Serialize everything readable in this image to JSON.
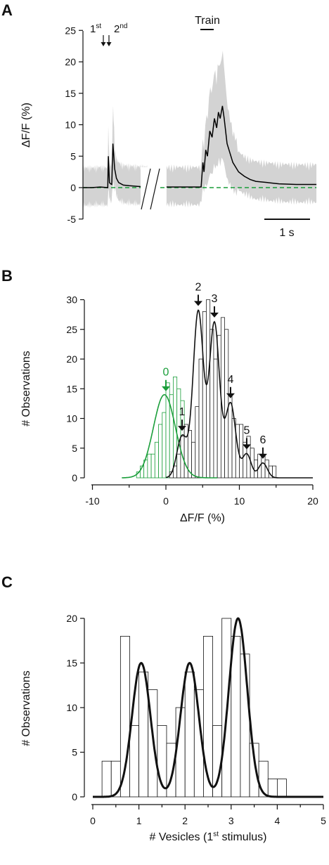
{
  "chart_data": [
    {
      "panel": "A",
      "type": "line",
      "ylabel": "ΔF/F (%)",
      "ylim": [
        -5,
        25
      ],
      "yticks": [
        -5,
        0,
        5,
        10,
        15,
        20,
        25
      ],
      "annotations": {
        "first": {
          "base": "1",
          "sup": "st"
        },
        "second": {
          "base": "2",
          "sup": "nd"
        },
        "train": "Train",
        "scalebar": "1 s"
      },
      "series": [
        {
          "role": "raw traces",
          "color": "#d3d3d3"
        },
        {
          "role": "average trace",
          "color": "#000000",
          "points_left": [
            [
              0,
              0
            ],
            [
              0.15,
              0
            ],
            [
              0.3,
              0.1
            ],
            [
              0.43,
              0
            ],
            [
              0.44,
              5
            ],
            [
              0.46,
              0.8
            ],
            [
              0.48,
              0.6
            ],
            [
              0.5,
              0.5
            ],
            [
              0.52,
              7
            ],
            [
              0.55,
              3
            ],
            [
              0.58,
              1.5
            ],
            [
              0.62,
              0.8
            ],
            [
              0.7,
              0.4
            ],
            [
              0.8,
              0.3
            ],
            [
              0.95,
              0.2
            ],
            [
              1.12,
              0.1
            ]
          ],
          "points_right": [
            [
              1.45,
              0.1
            ],
            [
              1.7,
              0.1
            ],
            [
              2.05,
              0.1
            ],
            [
              2.08,
              4
            ],
            [
              2.1,
              2.5
            ],
            [
              2.13,
              6
            ],
            [
              2.16,
              5
            ],
            [
              2.2,
              9
            ],
            [
              2.24,
              8
            ],
            [
              2.28,
              11
            ],
            [
              2.32,
              9.5
            ],
            [
              2.35,
              12
            ],
            [
              2.38,
              11
            ],
            [
              2.42,
              13
            ],
            [
              2.45,
              11
            ],
            [
              2.5,
              7
            ],
            [
              2.6,
              4
            ],
            [
              2.7,
              2.5
            ],
            [
              2.8,
              1.8
            ],
            [
              2.9,
              1.3
            ],
            [
              3.0,
              1.0
            ],
            [
              3.2,
              0.8
            ],
            [
              3.4,
              0.6
            ],
            [
              3.7,
              0.5
            ],
            [
              4.05,
              0.5
            ]
          ]
        },
        {
          "role": "baseline",
          "color": "#1a9e3a",
          "style": "dashed",
          "y": 0
        }
      ]
    },
    {
      "panel": "B",
      "type": "bar",
      "xlabel": "ΔF/F (%)",
      "ylabel": "# Observations",
      "xlim": [
        -10,
        20
      ],
      "ylim": [
        0,
        30
      ],
      "xticks": [
        -10,
        0,
        10,
        20
      ],
      "yticks": [
        0,
        5,
        10,
        15,
        20,
        25,
        30
      ],
      "bin_width": 0.5,
      "series": [
        {
          "name": "noise",
          "color": "#1a9e3a",
          "x_start": -4.0,
          "values": [
            1,
            2,
            3,
            4,
            4,
            6,
            9,
            11,
            16,
            14,
            17,
            15,
            13,
            7,
            5,
            4,
            2,
            1
          ]
        },
        {
          "name": "response",
          "color": "#222222",
          "x_start": 0.0,
          "values": [
            0,
            1,
            2,
            4,
            7,
            9,
            8,
            6,
            12,
            20,
            28,
            30,
            25,
            20,
            24,
            27,
            25,
            14,
            10,
            9,
            9,
            6,
            7,
            5,
            3,
            4,
            4,
            3,
            2,
            2
          ]
        }
      ],
      "peaks": [
        {
          "label": "0",
          "x": 0,
          "color": "#1a9e3a"
        },
        {
          "label": "1",
          "x": 2.2,
          "color": "#111111"
        },
        {
          "label": "2",
          "x": 4.4,
          "color": "#111111"
        },
        {
          "label": "3",
          "x": 6.6,
          "color": "#111111"
        },
        {
          "label": "4",
          "x": 8.8,
          "color": "#111111"
        },
        {
          "label": "5",
          "x": 11.0,
          "color": "#111111"
        },
        {
          "label": "6",
          "x": 13.2,
          "color": "#111111"
        }
      ],
      "fits": [
        {
          "color": "#1a9e3a",
          "components": [
            {
              "a": 14,
              "mu": -0.2,
              "sigma": 1.5
            }
          ]
        },
        {
          "color": "#111111",
          "components": [
            {
              "a": 7,
              "mu": 2.2,
              "sigma": 0.7
            },
            {
              "a": 28,
              "mu": 4.4,
              "sigma": 0.7
            },
            {
              "a": 26,
              "mu": 6.6,
              "sigma": 0.7
            },
            {
              "a": 12.5,
              "mu": 8.8,
              "sigma": 0.7
            },
            {
              "a": 4,
              "mu": 11.0,
              "sigma": 0.6
            },
            {
              "a": 2.5,
              "mu": 13.2,
              "sigma": 0.6
            }
          ]
        }
      ]
    },
    {
      "panel": "C",
      "type": "bar",
      "xlabel": {
        "base": "# Vesicles (1",
        "sup": "st",
        "end": " stimulus)"
      },
      "ylabel": "# Observations",
      "xlim": [
        0,
        5
      ],
      "ylim": [
        0,
        20
      ],
      "xticks": [
        0,
        1,
        2,
        3,
        4,
        5
      ],
      "yticks": [
        0,
        5,
        10,
        15,
        20
      ],
      "bin_width": 0.2,
      "bins": [
        {
          "x": 0.2,
          "value": 4
        },
        {
          "x": 0.4,
          "value": 4
        },
        {
          "x": 0.6,
          "value": 18
        },
        {
          "x": 0.8,
          "value": 8
        },
        {
          "x": 1.0,
          "value": 14
        },
        {
          "x": 1.2,
          "value": 12
        },
        {
          "x": 1.4,
          "value": 8
        },
        {
          "x": 1.6,
          "value": 6
        },
        {
          "x": 1.8,
          "value": 10
        },
        {
          "x": 2.0,
          "value": 14
        },
        {
          "x": 2.2,
          "value": 12
        },
        {
          "x": 2.4,
          "value": 18
        },
        {
          "x": 2.6,
          "value": 8
        },
        {
          "x": 2.8,
          "value": 20
        },
        {
          "x": 3.0,
          "value": 18
        },
        {
          "x": 3.2,
          "value": 16
        },
        {
          "x": 3.4,
          "value": 6
        },
        {
          "x": 3.6,
          "value": 4
        },
        {
          "x": 3.8,
          "value": 2
        },
        {
          "x": 4.0,
          "value": 2
        }
      ],
      "fit": {
        "color": "#111111",
        "components": [
          {
            "a": 15,
            "mu": 1.05,
            "sigma": 0.2
          },
          {
            "a": 15,
            "mu": 2.1,
            "sigma": 0.2
          },
          {
            "a": 20,
            "mu": 3.15,
            "sigma": 0.2
          }
        ]
      }
    }
  ],
  "labels": {
    "a": "A",
    "b": "B",
    "c": "C"
  },
  "colors": {
    "green": "#1a9e3a",
    "gray": "#d3d3d3",
    "black": "#111111"
  }
}
